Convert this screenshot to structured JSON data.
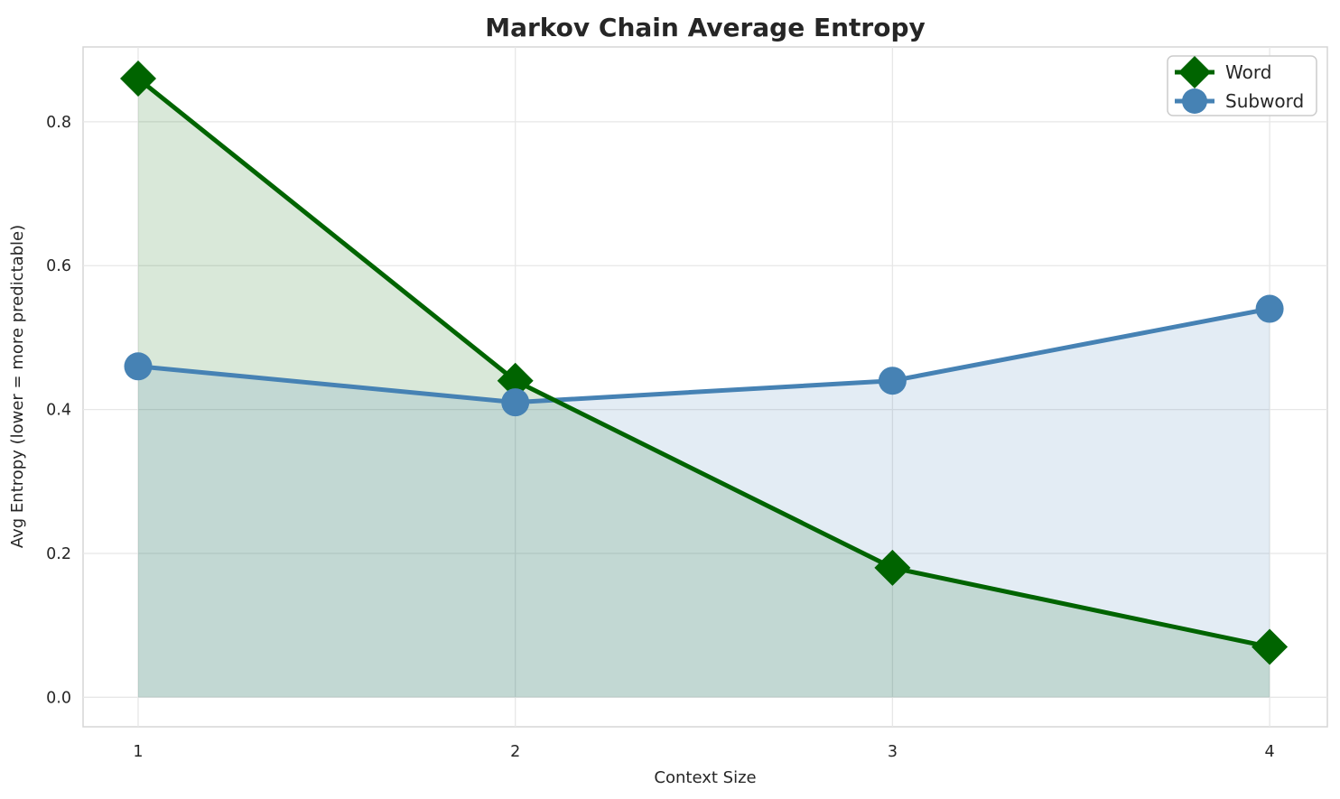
{
  "chart": {
    "title": "Markov Chain Average Entropy",
    "xlabel": "Context Size",
    "ylabel": "Avg Entropy (lower = more predictable)"
  },
  "legend": {
    "position": "upper right",
    "items": [
      {
        "label": "Word",
        "marker": "diamond-icon",
        "color": "#006400"
      },
      {
        "label": "Subword",
        "marker": "circle-icon",
        "color": "#4682b4"
      }
    ]
  },
  "chart_data": {
    "type": "line",
    "x": [
      1,
      2,
      3,
      4
    ],
    "series": [
      {
        "name": "Word",
        "values": [
          0.86,
          0.44,
          0.18,
          0.07
        ],
        "color": "#006400",
        "marker": "diamond",
        "fill_to_zero": true
      },
      {
        "name": "Subword",
        "values": [
          0.46,
          0.41,
          0.44,
          0.54
        ],
        "color": "#4682b4",
        "marker": "circle",
        "fill_to_zero": true
      }
    ],
    "title": "Markov Chain Average Entropy",
    "xlabel": "Context Size",
    "ylabel": "Avg Entropy (lower = more predictable)",
    "xticks": [
      {
        "value": 1,
        "label": "1"
      },
      {
        "value": 2,
        "label": "2"
      },
      {
        "value": 3,
        "label": "3"
      },
      {
        "value": 4,
        "label": "4"
      }
    ],
    "yticks": [
      {
        "value": 0.0,
        "label": "0.0"
      },
      {
        "value": 0.2,
        "label": "0.2"
      },
      {
        "value": 0.4,
        "label": "0.4"
      },
      {
        "value": 0.6,
        "label": "0.6"
      },
      {
        "value": 0.8,
        "label": "0.8"
      }
    ],
    "xlim": [
      0.854,
      4.153
    ],
    "ylim": [
      -0.041,
      0.904
    ],
    "grid": true,
    "fill_opacity": 0.15,
    "legend_position": "upper right"
  },
  "style_colors": {
    "grid": "#e7e7e7",
    "spine": "#d5d5d5",
    "text": "#262626",
    "background": "#ffffff"
  }
}
